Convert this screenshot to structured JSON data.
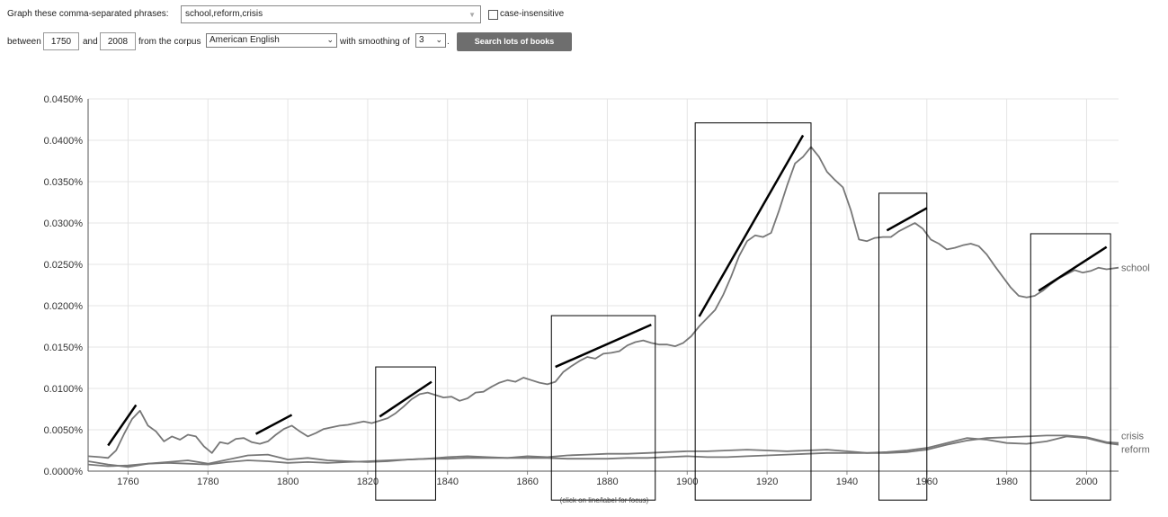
{
  "controls": {
    "phrases_label": "Graph these comma-separated phrases:",
    "phrases_value": "school,reform,crisis",
    "case_insensitive_label": "case-insensitive",
    "between_label": "between",
    "start_year": "1750",
    "and_label": "and",
    "end_year": "2008",
    "corpus_label": "from the corpus",
    "corpus_value": "American English",
    "smoothing_label": "with smoothing of",
    "smoothing_value": "3",
    "period": ".",
    "search_button": "Search lots of books"
  },
  "icons": {
    "phrase_dropdown": "chevron-down-icon",
    "select_arrow": "chevron-down-icon",
    "checkbox": "checkbox-unchecked-icon"
  },
  "chart_hint": "(click on line/label for focus)",
  "colors": {
    "line": "#777777",
    "grid": "#e4e4e4",
    "annotation": "#000000",
    "button": "#6e6e6e"
  },
  "chart_data": {
    "type": "line",
    "xlim": [
      1750,
      2008
    ],
    "ylim": [
      0,
      0.045
    ],
    "x_ticks": [
      1760,
      1780,
      1800,
      1820,
      1840,
      1860,
      1880,
      1900,
      1920,
      1940,
      1960,
      1980,
      2000
    ],
    "y_ticks": [
      {
        "v": 0,
        "label": "0.0000%"
      },
      {
        "v": 0.005,
        "label": "0.0050%"
      },
      {
        "v": 0.01,
        "label": "0.0100%"
      },
      {
        "v": 0.015,
        "label": "0.0150%"
      },
      {
        "v": 0.02,
        "label": "0.0200%"
      },
      {
        "v": 0.025,
        "label": "0.0250%"
      },
      {
        "v": 0.03,
        "label": "0.0300%"
      },
      {
        "v": 0.035,
        "label": "0.0350%"
      },
      {
        "v": 0.04,
        "label": "0.0400%"
      },
      {
        "v": 0.045,
        "label": "0.0450%"
      }
    ],
    "grid": true,
    "series": [
      {
        "name": "school",
        "points": [
          [
            1750,
            0.0018
          ],
          [
            1753,
            0.0017
          ],
          [
            1755,
            0.0016
          ],
          [
            1757,
            0.0025
          ],
          [
            1759,
            0.0045
          ],
          [
            1761,
            0.0063
          ],
          [
            1763,
            0.0073
          ],
          [
            1765,
            0.0055
          ],
          [
            1767,
            0.0048
          ],
          [
            1769,
            0.0036
          ],
          [
            1771,
            0.0042
          ],
          [
            1773,
            0.0038
          ],
          [
            1775,
            0.0044
          ],
          [
            1777,
            0.0042
          ],
          [
            1779,
            0.003
          ],
          [
            1781,
            0.0022
          ],
          [
            1783,
            0.0035
          ],
          [
            1785,
            0.0033
          ],
          [
            1787,
            0.0039
          ],
          [
            1789,
            0.004
          ],
          [
            1791,
            0.0035
          ],
          [
            1793,
            0.0033
          ],
          [
            1795,
            0.0036
          ],
          [
            1797,
            0.0044
          ],
          [
            1799,
            0.0051
          ],
          [
            1801,
            0.0055
          ],
          [
            1803,
            0.0048
          ],
          [
            1805,
            0.0042
          ],
          [
            1807,
            0.0046
          ],
          [
            1809,
            0.0051
          ],
          [
            1811,
            0.0053
          ],
          [
            1813,
            0.0055
          ],
          [
            1815,
            0.0056
          ],
          [
            1817,
            0.0058
          ],
          [
            1819,
            0.006
          ],
          [
            1821,
            0.0058
          ],
          [
            1823,
            0.0061
          ],
          [
            1825,
            0.0064
          ],
          [
            1827,
            0.007
          ],
          [
            1829,
            0.0078
          ],
          [
            1831,
            0.0087
          ],
          [
            1833,
            0.0093
          ],
          [
            1835,
            0.0095
          ],
          [
            1837,
            0.0092
          ],
          [
            1839,
            0.0089
          ],
          [
            1841,
            0.009
          ],
          [
            1843,
            0.0085
          ],
          [
            1845,
            0.0088
          ],
          [
            1847,
            0.0095
          ],
          [
            1849,
            0.0096
          ],
          [
            1851,
            0.0102
          ],
          [
            1853,
            0.0107
          ],
          [
            1855,
            0.011
          ],
          [
            1857,
            0.0108
          ],
          [
            1859,
            0.0113
          ],
          [
            1861,
            0.011
          ],
          [
            1863,
            0.0107
          ],
          [
            1865,
            0.0105
          ],
          [
            1867,
            0.0108
          ],
          [
            1869,
            0.012
          ],
          [
            1871,
            0.0127
          ],
          [
            1873,
            0.0133
          ],
          [
            1875,
            0.0138
          ],
          [
            1877,
            0.0136
          ],
          [
            1879,
            0.0142
          ],
          [
            1881,
            0.0143
          ],
          [
            1883,
            0.0145
          ],
          [
            1885,
            0.0152
          ],
          [
            1887,
            0.0156
          ],
          [
            1889,
            0.0158
          ],
          [
            1891,
            0.0155
          ],
          [
            1893,
            0.0153
          ],
          [
            1895,
            0.0153
          ],
          [
            1897,
            0.0151
          ],
          [
            1899,
            0.0155
          ],
          [
            1901,
            0.0163
          ],
          [
            1903,
            0.0175
          ],
          [
            1905,
            0.0185
          ],
          [
            1907,
            0.0195
          ],
          [
            1909,
            0.0213
          ],
          [
            1911,
            0.0235
          ],
          [
            1913,
            0.026
          ],
          [
            1915,
            0.0278
          ],
          [
            1917,
            0.0285
          ],
          [
            1919,
            0.0283
          ],
          [
            1921,
            0.0288
          ],
          [
            1923,
            0.0315
          ],
          [
            1925,
            0.0345
          ],
          [
            1927,
            0.0372
          ],
          [
            1929,
            0.038
          ],
          [
            1931,
            0.0392
          ],
          [
            1933,
            0.038
          ],
          [
            1935,
            0.0362
          ],
          [
            1937,
            0.0352
          ],
          [
            1939,
            0.0343
          ],
          [
            1941,
            0.0315
          ],
          [
            1943,
            0.028
          ],
          [
            1945,
            0.0278
          ],
          [
            1947,
            0.0282
          ],
          [
            1949,
            0.0283
          ],
          [
            1951,
            0.0283
          ],
          [
            1953,
            0.029
          ],
          [
            1955,
            0.0295
          ],
          [
            1957,
            0.03
          ],
          [
            1959,
            0.0293
          ],
          [
            1961,
            0.028
          ],
          [
            1963,
            0.0275
          ],
          [
            1965,
            0.0268
          ],
          [
            1967,
            0.027
          ],
          [
            1969,
            0.0273
          ],
          [
            1971,
            0.0275
          ],
          [
            1973,
            0.0272
          ],
          [
            1975,
            0.0262
          ],
          [
            1977,
            0.0248
          ],
          [
            1979,
            0.0235
          ],
          [
            1981,
            0.0222
          ],
          [
            1983,
            0.0212
          ],
          [
            1985,
            0.021
          ],
          [
            1987,
            0.0212
          ],
          [
            1989,
            0.0218
          ],
          [
            1991,
            0.0226
          ],
          [
            1993,
            0.0233
          ],
          [
            1995,
            0.0238
          ],
          [
            1997,
            0.0243
          ],
          [
            1999,
            0.024
          ],
          [
            2001,
            0.0242
          ],
          [
            2003,
            0.0246
          ],
          [
            2005,
            0.0244
          ],
          [
            2008,
            0.0246
          ]
        ]
      },
      {
        "name": "crisis",
        "points": [
          [
            1750,
            0.0008
          ],
          [
            1755,
            0.0006
          ],
          [
            1760,
            0.0007
          ],
          [
            1765,
            0.0009
          ],
          [
            1770,
            0.001
          ],
          [
            1775,
            0.0009
          ],
          [
            1780,
            0.0008
          ],
          [
            1785,
            0.0011
          ],
          [
            1790,
            0.0013
          ],
          [
            1795,
            0.0012
          ],
          [
            1800,
            0.001
          ],
          [
            1805,
            0.0011
          ],
          [
            1810,
            0.001
          ],
          [
            1815,
            0.0011
          ],
          [
            1820,
            0.0012
          ],
          [
            1825,
            0.0013
          ],
          [
            1830,
            0.0014
          ],
          [
            1835,
            0.0015
          ],
          [
            1840,
            0.0015
          ],
          [
            1845,
            0.0016
          ],
          [
            1850,
            0.0016
          ],
          [
            1855,
            0.0016
          ],
          [
            1860,
            0.0016
          ],
          [
            1865,
            0.0016
          ],
          [
            1870,
            0.0015
          ],
          [
            1875,
            0.0015
          ],
          [
            1880,
            0.0015
          ],
          [
            1885,
            0.0016
          ],
          [
            1890,
            0.0016
          ],
          [
            1895,
            0.0017
          ],
          [
            1900,
            0.0018
          ],
          [
            1905,
            0.0017
          ],
          [
            1910,
            0.0017
          ],
          [
            1915,
            0.0018
          ],
          [
            1920,
            0.0019
          ],
          [
            1925,
            0.002
          ],
          [
            1930,
            0.0021
          ],
          [
            1935,
            0.0022
          ],
          [
            1940,
            0.0022
          ],
          [
            1945,
            0.0022
          ],
          [
            1950,
            0.0022
          ],
          [
            1955,
            0.0023
          ],
          [
            1960,
            0.0026
          ],
          [
            1965,
            0.0032
          ],
          [
            1970,
            0.0037
          ],
          [
            1975,
            0.004
          ],
          [
            1980,
            0.0041
          ],
          [
            1985,
            0.0042
          ],
          [
            1990,
            0.0043
          ],
          [
            1995,
            0.0043
          ],
          [
            2000,
            0.0041
          ],
          [
            2005,
            0.0035
          ],
          [
            2008,
            0.0034
          ]
        ]
      },
      {
        "name": "reform",
        "points": [
          [
            1750,
            0.0012
          ],
          [
            1755,
            0.0008
          ],
          [
            1760,
            0.0005
          ],
          [
            1765,
            0.0009
          ],
          [
            1770,
            0.0011
          ],
          [
            1775,
            0.0013
          ],
          [
            1780,
            0.0009
          ],
          [
            1785,
            0.0014
          ],
          [
            1790,
            0.0019
          ],
          [
            1795,
            0.002
          ],
          [
            1800,
            0.0014
          ],
          [
            1805,
            0.0016
          ],
          [
            1810,
            0.0013
          ],
          [
            1815,
            0.0012
          ],
          [
            1820,
            0.0011
          ],
          [
            1825,
            0.0012
          ],
          [
            1830,
            0.0014
          ],
          [
            1835,
            0.0015
          ],
          [
            1840,
            0.0017
          ],
          [
            1845,
            0.0018
          ],
          [
            1850,
            0.0017
          ],
          [
            1855,
            0.0016
          ],
          [
            1860,
            0.0018
          ],
          [
            1865,
            0.0017
          ],
          [
            1870,
            0.0019
          ],
          [
            1875,
            0.002
          ],
          [
            1880,
            0.0021
          ],
          [
            1885,
            0.0021
          ],
          [
            1890,
            0.0022
          ],
          [
            1895,
            0.0023
          ],
          [
            1900,
            0.0024
          ],
          [
            1905,
            0.0024
          ],
          [
            1910,
            0.0025
          ],
          [
            1915,
            0.0026
          ],
          [
            1920,
            0.0025
          ],
          [
            1925,
            0.0024
          ],
          [
            1930,
            0.0025
          ],
          [
            1935,
            0.0026
          ],
          [
            1940,
            0.0024
          ],
          [
            1945,
            0.0022
          ],
          [
            1950,
            0.0023
          ],
          [
            1955,
            0.0025
          ],
          [
            1960,
            0.0028
          ],
          [
            1965,
            0.0034
          ],
          [
            1970,
            0.004
          ],
          [
            1975,
            0.0038
          ],
          [
            1980,
            0.0034
          ],
          [
            1985,
            0.0033
          ],
          [
            1990,
            0.0036
          ],
          [
            1995,
            0.0042
          ],
          [
            2000,
            0.004
          ],
          [
            2005,
            0.0034
          ],
          [
            2008,
            0.0032
          ]
        ]
      }
    ],
    "annotation_boxes": [
      {
        "x": [
          1822,
          1837
        ],
        "y": [
          -0.0035,
          0.0126
        ]
      },
      {
        "x": [
          1866,
          1892
        ],
        "y": [
          -0.0035,
          0.0188
        ]
      },
      {
        "x": [
          1902,
          1931
        ],
        "y": [
          -0.0035,
          0.0421
        ]
      },
      {
        "x": [
          1948,
          1960
        ],
        "y": [
          -0.0035,
          0.0336
        ]
      },
      {
        "x": [
          1986,
          2006
        ],
        "y": [
          -0.0035,
          0.0287
        ]
      }
    ],
    "trend_lines": [
      {
        "x": [
          1755,
          1762
        ],
        "y": [
          0.0031,
          0.008
        ]
      },
      {
        "x": [
          1792,
          1801
        ],
        "y": [
          0.0045,
          0.0068
        ]
      },
      {
        "x": [
          1823,
          1836
        ],
        "y": [
          0.0066,
          0.0108
        ]
      },
      {
        "x": [
          1867,
          1891
        ],
        "y": [
          0.0126,
          0.0177
        ]
      },
      {
        "x": [
          1903,
          1929
        ],
        "y": [
          0.0187,
          0.0406
        ]
      },
      {
        "x": [
          1950,
          1960
        ],
        "y": [
          0.0291,
          0.0318
        ]
      },
      {
        "x": [
          1988,
          2005
        ],
        "y": [
          0.0218,
          0.0271
        ]
      }
    ]
  }
}
